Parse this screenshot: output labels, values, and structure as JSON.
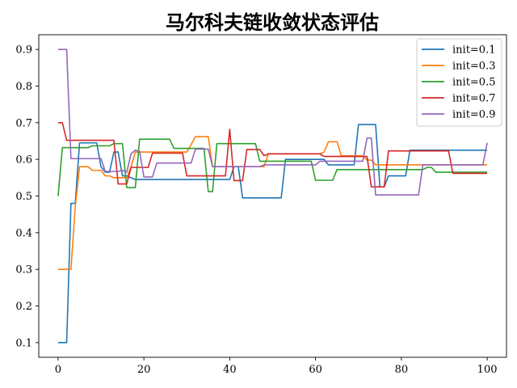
{
  "chart_data": {
    "type": "line",
    "title": "马尔科夫链收敛状态评估",
    "xlabel": "",
    "ylabel": "",
    "xlim": [
      -4.5,
      104.5
    ],
    "ylim": [
      0.06,
      0.94
    ],
    "xticks": [
      0,
      20,
      40,
      60,
      80,
      100
    ],
    "yticks": [
      0.1,
      0.2,
      0.3,
      0.4,
      0.5,
      0.6,
      0.7,
      0.8,
      0.9
    ],
    "grid": false,
    "legend_position": "top-right",
    "series": [
      {
        "name": "init=0.1",
        "color": "#1f77b4",
        "points": [
          [
            0,
            0.1
          ],
          [
            2,
            0.1
          ],
          [
            3,
            0.48
          ],
          [
            4,
            0.48
          ],
          [
            5,
            0.645
          ],
          [
            9,
            0.645
          ],
          [
            10,
            0.58
          ],
          [
            11,
            0.565
          ],
          [
            12,
            0.565
          ],
          [
            13,
            0.62
          ],
          [
            14,
            0.62
          ],
          [
            15,
            0.555
          ],
          [
            16,
            0.555
          ],
          [
            17,
            0.55
          ],
          [
            18,
            0.545
          ],
          [
            40,
            0.545
          ],
          [
            41,
            0.58
          ],
          [
            42,
            0.58
          ],
          [
            43,
            0.495
          ],
          [
            52,
            0.495
          ],
          [
            53,
            0.6
          ],
          [
            62,
            0.6
          ],
          [
            63,
            0.585
          ],
          [
            69,
            0.585
          ],
          [
            70,
            0.695
          ],
          [
            74,
            0.695
          ],
          [
            75,
            0.525
          ],
          [
            76,
            0.525
          ],
          [
            77,
            0.555
          ],
          [
            81,
            0.555
          ],
          [
            82,
            0.625
          ],
          [
            100,
            0.625
          ]
        ]
      },
      {
        "name": "init=0.3",
        "color": "#ff7f0e",
        "points": [
          [
            0,
            0.3
          ],
          [
            3,
            0.3
          ],
          [
            4,
            0.47
          ],
          [
            5,
            0.58
          ],
          [
            7,
            0.58
          ],
          [
            8,
            0.57
          ],
          [
            10,
            0.57
          ],
          [
            11,
            0.555
          ],
          [
            12,
            0.555
          ],
          [
            13,
            0.55
          ],
          [
            16,
            0.55
          ],
          [
            17,
            0.58
          ],
          [
            18,
            0.62
          ],
          [
            30,
            0.62
          ],
          [
            31,
            0.64
          ],
          [
            32,
            0.662
          ],
          [
            35,
            0.662
          ],
          [
            36,
            0.58
          ],
          [
            48,
            0.58
          ],
          [
            49,
            0.615
          ],
          [
            61,
            0.615
          ],
          [
            62,
            0.62
          ],
          [
            63,
            0.648
          ],
          [
            65,
            0.648
          ],
          [
            66,
            0.61
          ],
          [
            71,
            0.61
          ],
          [
            72,
            0.598
          ],
          [
            73,
            0.598
          ],
          [
            74,
            0.585
          ],
          [
            100,
            0.585
          ]
        ]
      },
      {
        "name": "init=0.5",
        "color": "#2ca02c",
        "points": [
          [
            0,
            0.5
          ],
          [
            1,
            0.632
          ],
          [
            7,
            0.632
          ],
          [
            8,
            0.637
          ],
          [
            12,
            0.637
          ],
          [
            13,
            0.643
          ],
          [
            15,
            0.643
          ],
          [
            16,
            0.523
          ],
          [
            18,
            0.523
          ],
          [
            19,
            0.655
          ],
          [
            26,
            0.655
          ],
          [
            27,
            0.63
          ],
          [
            34,
            0.63
          ],
          [
            35,
            0.512
          ],
          [
            36,
            0.512
          ],
          [
            37,
            0.643
          ],
          [
            46,
            0.643
          ],
          [
            47,
            0.595
          ],
          [
            59,
            0.595
          ],
          [
            60,
            0.543
          ],
          [
            64,
            0.543
          ],
          [
            65,
            0.572
          ],
          [
            85,
            0.572
          ],
          [
            86,
            0.578
          ],
          [
            87,
            0.578
          ],
          [
            88,
            0.565
          ],
          [
            100,
            0.565
          ]
        ]
      },
      {
        "name": "init=0.7",
        "color": "#d62728",
        "points": [
          [
            0,
            0.7
          ],
          [
            1,
            0.7
          ],
          [
            2,
            0.652
          ],
          [
            13,
            0.652
          ],
          [
            14,
            0.533
          ],
          [
            16,
            0.533
          ],
          [
            17,
            0.578
          ],
          [
            21,
            0.578
          ],
          [
            22,
            0.617
          ],
          [
            29,
            0.617
          ],
          [
            30,
            0.555
          ],
          [
            39,
            0.555
          ],
          [
            40,
            0.682
          ],
          [
            41,
            0.542
          ],
          [
            43,
            0.542
          ],
          [
            44,
            0.627
          ],
          [
            47,
            0.627
          ],
          [
            48,
            0.61
          ],
          [
            49,
            0.615
          ],
          [
            61,
            0.615
          ],
          [
            62,
            0.608
          ],
          [
            72,
            0.608
          ],
          [
            73,
            0.525
          ],
          [
            76,
            0.525
          ],
          [
            77,
            0.623
          ],
          [
            91,
            0.623
          ],
          [
            92,
            0.562
          ],
          [
            100,
            0.562
          ]
        ]
      },
      {
        "name": "init=0.9",
        "color": "#9467bd",
        "points": [
          [
            0,
            0.9
          ],
          [
            2,
            0.9
          ],
          [
            3,
            0.602
          ],
          [
            10,
            0.602
          ],
          [
            11,
            0.567
          ],
          [
            14,
            0.567
          ],
          [
            15,
            0.57
          ],
          [
            16,
            0.565
          ],
          [
            17,
            0.615
          ],
          [
            18,
            0.625
          ],
          [
            19,
            0.622
          ],
          [
            20,
            0.552
          ],
          [
            22,
            0.552
          ],
          [
            23,
            0.59
          ],
          [
            31,
            0.59
          ],
          [
            32,
            0.628
          ],
          [
            35,
            0.628
          ],
          [
            36,
            0.58
          ],
          [
            47,
            0.58
          ],
          [
            48,
            0.585
          ],
          [
            60,
            0.585
          ],
          [
            61,
            0.595
          ],
          [
            71,
            0.595
          ],
          [
            72,
            0.658
          ],
          [
            73,
            0.658
          ],
          [
            74,
            0.503
          ],
          [
            84,
            0.503
          ],
          [
            85,
            0.585
          ],
          [
            99,
            0.585
          ],
          [
            100,
            0.645
          ]
        ]
      }
    ]
  }
}
